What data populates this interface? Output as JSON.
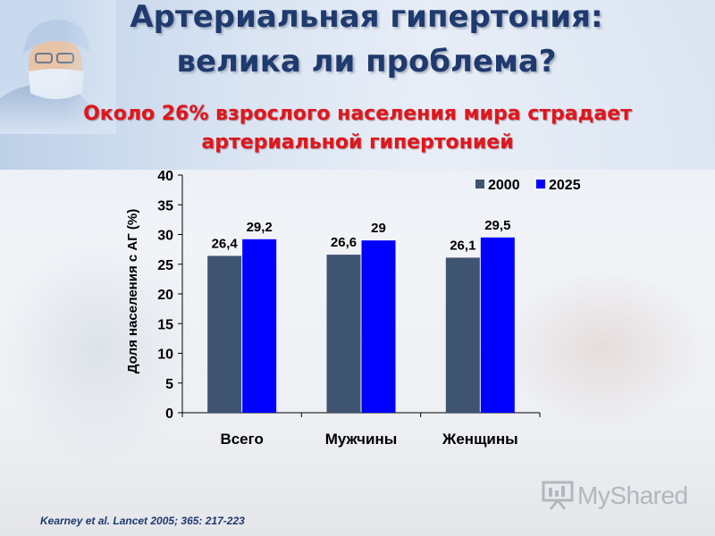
{
  "slide": {
    "title": "Артериальная гипертония: велика ли проблема?",
    "subtitle": "Около 26% взрослого населения мира страдает артериальной гипертонией",
    "citation": "Kearney et al. Lancet 2005; 365: 217-223",
    "watermark": "MyShared"
  },
  "colors": {
    "series_2000": "#3f5470",
    "series_2025": "#0000ff",
    "title": "#1f3a6e",
    "subtitle": "#e0161c"
  },
  "icons": {
    "watermark": "presentation-board-icon"
  },
  "chart_data": {
    "type": "bar",
    "title": "",
    "xlabel": "",
    "ylabel": "Доля населения с АГ (%)",
    "ylim": [
      0,
      40
    ],
    "yticks": [
      0,
      5,
      10,
      15,
      20,
      25,
      30,
      35,
      40
    ],
    "grid": false,
    "legend_position": "top-right",
    "categories": [
      "Всего",
      "Мужчины",
      "Женщины"
    ],
    "series": [
      {
        "name": "2000",
        "values": [
          26.4,
          26.6,
          26.1
        ],
        "labels": [
          "26,4",
          "26,6",
          "26,1"
        ]
      },
      {
        "name": "2025",
        "values": [
          29.2,
          29.0,
          29.5
        ],
        "labels": [
          "29,2",
          "29",
          "29,5"
        ]
      }
    ]
  }
}
